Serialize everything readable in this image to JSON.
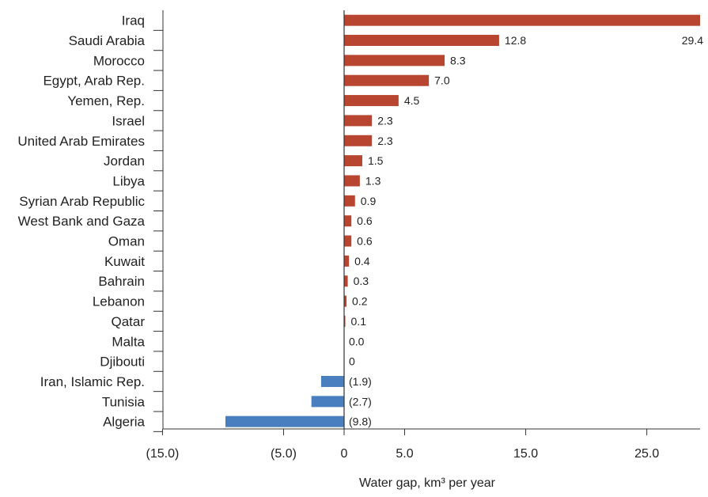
{
  "chart_data": {
    "type": "bar",
    "orientation": "horizontal",
    "categories": [
      "Iraq",
      "Saudi Arabia",
      "Morocco",
      "Egypt, Arab Rep.",
      "Yemen, Rep.",
      "Israel",
      "United Arab Emirates",
      "Jordan",
      "Libya",
      "Syrian Arab Republic",
      "West Bank and Gaza",
      "Oman",
      "Kuwait",
      "Bahrain",
      "Lebanon",
      "Qatar",
      "Malta",
      "Djibouti",
      "Iran, Islamic Rep.",
      "Tunisia",
      "Algeria"
    ],
    "values": [
      29.4,
      12.8,
      8.3,
      7.0,
      4.5,
      2.3,
      2.3,
      1.5,
      1.3,
      0.9,
      0.6,
      0.6,
      0.4,
      0.3,
      0.2,
      0.1,
      0.0,
      0,
      -1.9,
      -2.7,
      -9.8
    ],
    "value_labels": [
      "29.4",
      "12.8",
      "8.3",
      "7.0",
      "4.5",
      "2.3",
      "2.3",
      "1.5",
      "1.3",
      "0.9",
      "0.6",
      "0.6",
      "0.4",
      "0.3",
      "0.2",
      "0.1",
      "0.0",
      "0",
      "(1.9)",
      "(2.7)",
      "(9.8)"
    ],
    "xlabel": "Water gap, km³ per year",
    "ylabel": "",
    "xlim": [
      -15,
      29.4
    ],
    "x_ticks": [
      -15,
      -5,
      0,
      5,
      15,
      25
    ],
    "x_tick_labels": [
      "(15.0)",
      "(5.0)",
      "0",
      "5.0",
      "15.0",
      "25.0"
    ],
    "grid": false,
    "colors": {
      "positive": "#b8452f",
      "negative": "#4a7fbf",
      "axis": "#333333"
    }
  }
}
